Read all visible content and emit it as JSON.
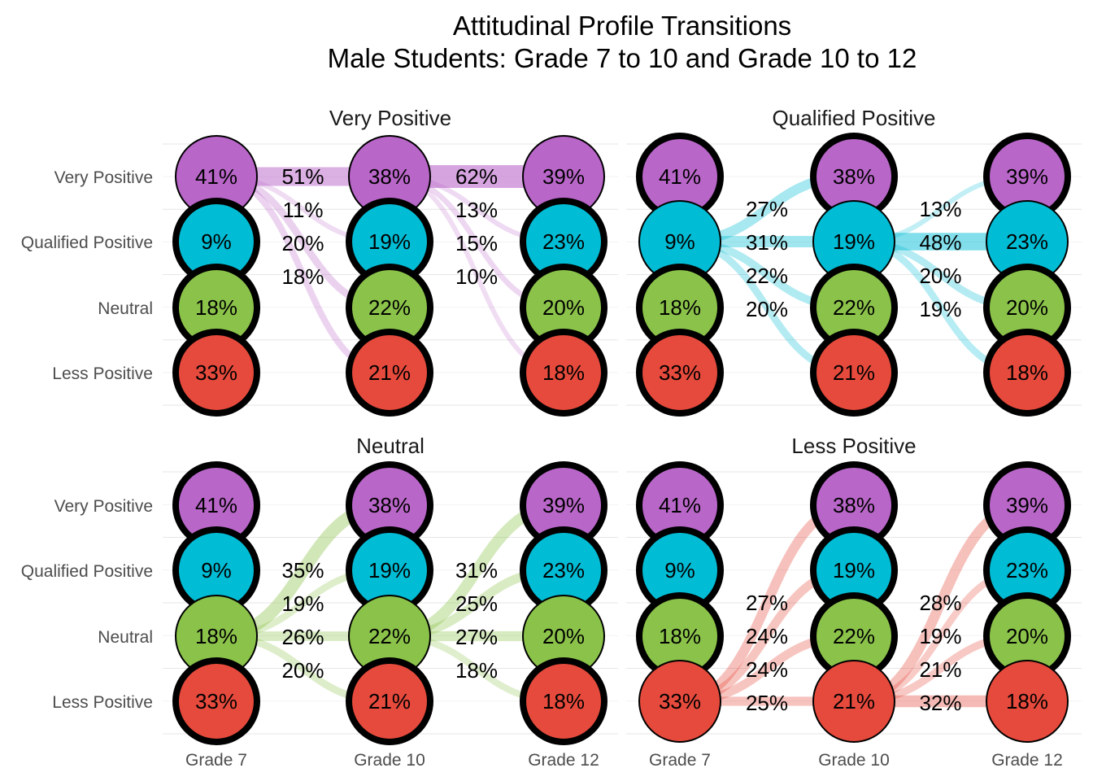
{
  "chart_data": {
    "type": "alluvial",
    "title_line1": "Attitudinal Profile Transitions",
    "title_line2": "Male Students: Grade 7 to 10 and Grade 10 to 12",
    "x_labels": [
      "Grade 7",
      "Grade 10",
      "Grade 12"
    ],
    "profiles": [
      "Very Positive",
      "Qualified Positive",
      "Neutral",
      "Less Positive"
    ],
    "colors": {
      "Very Positive": "#b966c9",
      "Qualified Positive": "#00bcd4",
      "Neutral": "#8bc34a",
      "Less Positive": "#e64a3c"
    },
    "node_labels": {
      "Grade 7": [
        "41%",
        "9%",
        "18%",
        "33%"
      ],
      "Grade 10": [
        "38%",
        "19%",
        "22%",
        "21%"
      ],
      "Grade 12": [
        "39%",
        "23%",
        "20%",
        "18%"
      ]
    },
    "panels": [
      {
        "title": "Very Positive",
        "source": "Very Positive",
        "transitions_7_to_10": [
          {
            "to": "Very Positive",
            "value": 51,
            "label": "51%"
          },
          {
            "to": "Qualified Positive",
            "value": 11,
            "label": "11%"
          },
          {
            "to": "Neutral",
            "value": 20,
            "label": "20%"
          },
          {
            "to": "Less Positive",
            "value": 18,
            "label": "18%"
          }
        ],
        "transitions_10_to_12": [
          {
            "to": "Very Positive",
            "value": 62,
            "label": "62%"
          },
          {
            "to": "Qualified Positive",
            "value": 13,
            "label": "13%"
          },
          {
            "to": "Neutral",
            "value": 15,
            "label": "15%"
          },
          {
            "to": "Less Positive",
            "value": 10,
            "label": "10%"
          }
        ]
      },
      {
        "title": "Qualified Positive",
        "source": "Qualified Positive",
        "transitions_7_to_10": [
          {
            "to": "Very Positive",
            "value": 27,
            "label": "27%"
          },
          {
            "to": "Qualified Positive",
            "value": 31,
            "label": "31%"
          },
          {
            "to": "Neutral",
            "value": 22,
            "label": "22%"
          },
          {
            "to": "Less Positive",
            "value": 20,
            "label": "20%"
          }
        ],
        "transitions_10_to_12": [
          {
            "to": "Very Positive",
            "value": 13,
            "label": "13%"
          },
          {
            "to": "Qualified Positive",
            "value": 48,
            "label": "48%"
          },
          {
            "to": "Neutral",
            "value": 20,
            "label": "20%"
          },
          {
            "to": "Less Positive",
            "value": 19,
            "label": "19%"
          }
        ]
      },
      {
        "title": "Neutral",
        "source": "Neutral",
        "transitions_7_to_10": [
          {
            "to": "Very Positive",
            "value": 35,
            "label": "35%"
          },
          {
            "to": "Qualified Positive",
            "value": 19,
            "label": "19%"
          },
          {
            "to": "Neutral",
            "value": 26,
            "label": "26%"
          },
          {
            "to": "Less Positive",
            "value": 20,
            "label": "20%"
          }
        ],
        "transitions_10_to_12": [
          {
            "to": "Very Positive",
            "value": 31,
            "label": "31%"
          },
          {
            "to": "Qualified Positive",
            "value": 25,
            "label": "25%"
          },
          {
            "to": "Neutral",
            "value": 27,
            "label": "27%"
          },
          {
            "to": "Less Positive",
            "value": 18,
            "label": "18%"
          }
        ]
      },
      {
        "title": "Less Positive",
        "source": "Less Positive",
        "transitions_7_to_10": [
          {
            "to": "Very Positive",
            "value": 27,
            "label": "27%"
          },
          {
            "to": "Qualified Positive",
            "value": 24,
            "label": "24%"
          },
          {
            "to": "Neutral",
            "value": 24,
            "label": "24%"
          },
          {
            "to": "Less Positive",
            "value": 25,
            "label": "25%"
          }
        ],
        "transitions_10_to_12": [
          {
            "to": "Very Positive",
            "value": 28,
            "label": "28%"
          },
          {
            "to": "Qualified Positive",
            "value": 19,
            "label": "19%"
          },
          {
            "to": "Neutral",
            "value": 21,
            "label": "21%"
          },
          {
            "to": "Less Positive",
            "value": 32,
            "label": "32%"
          }
        ]
      }
    ]
  }
}
